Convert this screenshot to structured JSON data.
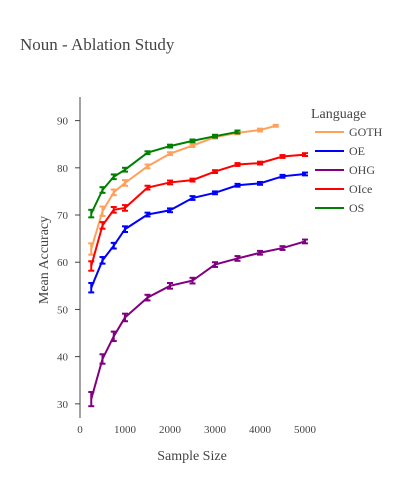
{
  "chart_data": {
    "type": "line",
    "title": "Noun - Ablation Study",
    "xlabel": "Sample Size",
    "ylabel": "Mean Accuracy",
    "xlim": [
      0,
      5000
    ],
    "ylim": [
      27,
      95
    ],
    "x_ticks": [
      0,
      1000,
      2000,
      3000,
      4000,
      5000
    ],
    "y_ticks": [
      30,
      40,
      50,
      60,
      70,
      80,
      90
    ],
    "grid": false,
    "legend": {
      "title": "Language",
      "placement": "right"
    },
    "series": [
      {
        "name": "GOTH",
        "color": "#ffa15a",
        "x": [
          250,
          500,
          750,
          1000,
          1500,
          2000,
          2500,
          3000,
          3500,
          4000,
          4350
        ],
        "y": [
          62.8,
          70.8,
          74.8,
          76.8,
          80.3,
          83.0,
          84.7,
          86.5,
          87.4,
          88.0,
          88.9
        ],
        "err": [
          1.2,
          1.0,
          0.6,
          0.6,
          0.4,
          0.3,
          0.3,
          0.3,
          0.3,
          0.3,
          0.2
        ]
      },
      {
        "name": "OE",
        "color": "#0000ff",
        "x": [
          250,
          500,
          750,
          1000,
          1500,
          2000,
          2500,
          3000,
          3500,
          4000,
          4500,
          5000
        ],
        "y": [
          54.6,
          60.4,
          63.5,
          67.0,
          70.1,
          71.0,
          73.6,
          74.7,
          76.3,
          76.7,
          78.2,
          78.7
        ],
        "err": [
          1.0,
          0.7,
          0.6,
          0.6,
          0.4,
          0.4,
          0.4,
          0.3,
          0.3,
          0.3,
          0.3,
          0.3
        ]
      },
      {
        "name": "OHG",
        "color": "#800080",
        "x": [
          250,
          500,
          750,
          1000,
          1500,
          2000,
          2500,
          3000,
          3500,
          4000,
          4500,
          5000
        ],
        "y": [
          31.0,
          39.5,
          44.3,
          48.3,
          52.5,
          55.0,
          56.1,
          59.5,
          60.8,
          62.0,
          63.0,
          64.4
        ],
        "err": [
          1.5,
          1.0,
          1.0,
          0.8,
          0.6,
          0.6,
          0.6,
          0.5,
          0.5,
          0.4,
          0.4,
          0.4
        ]
      },
      {
        "name": "OIce",
        "color": "#ff0000",
        "x": [
          250,
          500,
          750,
          1000,
          1500,
          2000,
          2500,
          3000,
          3500,
          4000,
          4500,
          5000
        ],
        "y": [
          59.2,
          67.8,
          71.1,
          71.5,
          75.8,
          76.9,
          77.4,
          79.2,
          80.7,
          81.0,
          82.4,
          82.8
        ],
        "err": [
          1.0,
          0.7,
          0.6,
          0.6,
          0.4,
          0.4,
          0.3,
          0.3,
          0.3,
          0.3,
          0.3,
          0.3
        ]
      },
      {
        "name": "OS",
        "color": "#008000",
        "x": [
          250,
          500,
          750,
          1000,
          1500,
          2000,
          2500,
          3000,
          3500
        ],
        "y": [
          70.3,
          75.3,
          78.1,
          79.6,
          83.2,
          84.6,
          85.7,
          86.7,
          87.6
        ],
        "err": [
          0.8,
          0.6,
          0.5,
          0.4,
          0.3,
          0.3,
          0.3,
          0.3,
          0.3
        ]
      }
    ]
  }
}
